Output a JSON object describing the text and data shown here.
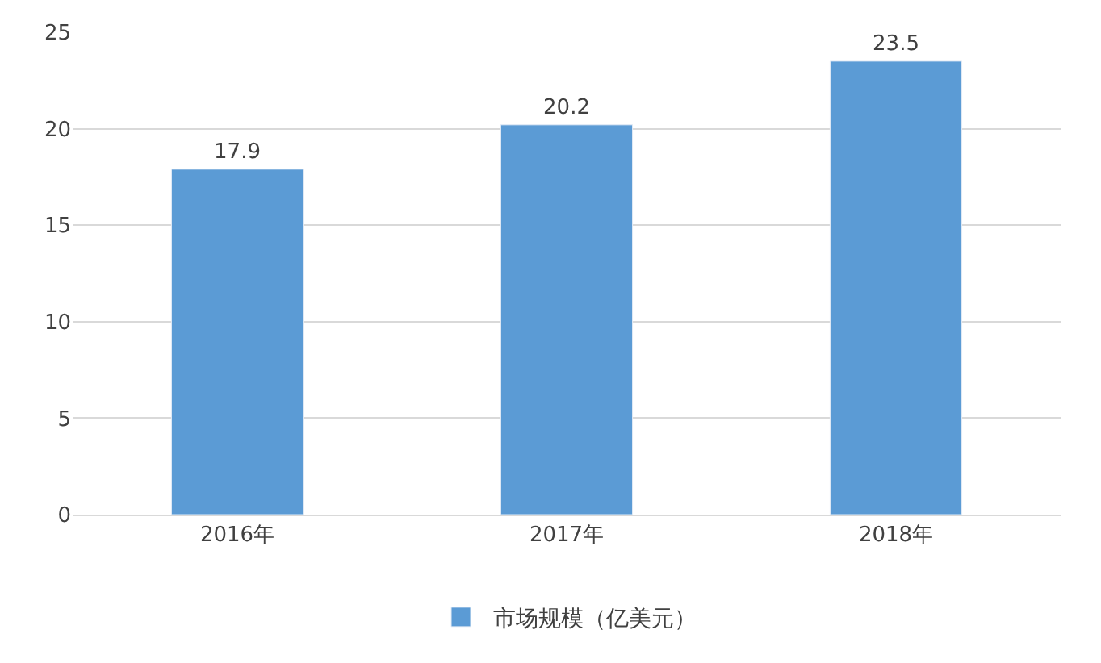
{
  "chart_data": {
    "type": "bar",
    "categories": [
      "2016年",
      "2017年",
      "2018年"
    ],
    "series": [
      {
        "name": "市场规模（亿美元）",
        "color": "#5b9bd5",
        "values": [
          17.9,
          20.2,
          23.5
        ]
      }
    ],
    "ylim": [
      0,
      25
    ],
    "yticks": [
      0,
      5,
      10,
      15,
      20,
      25
    ],
    "grid": "y",
    "legend": "bottom",
    "data_labels": true
  }
}
